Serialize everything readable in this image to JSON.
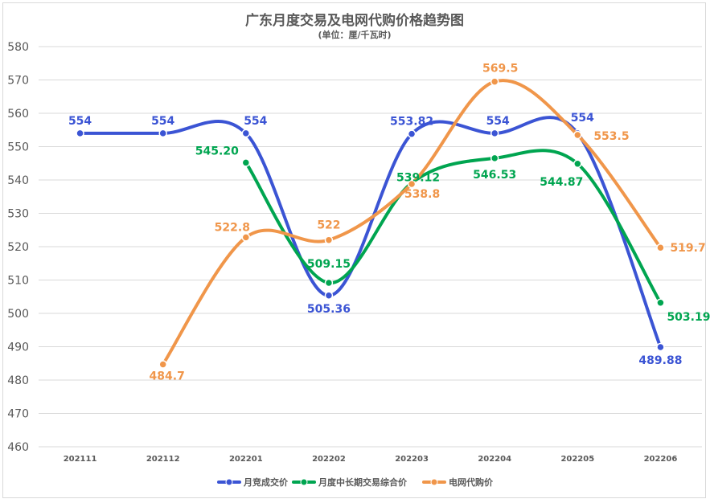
{
  "chart_data": {
    "type": "line",
    "title": "广东月度交易及电网代购价格趋势图",
    "subtitle": "(单位：厘/千瓦时)",
    "categories": [
      "202111",
      "202112",
      "202201",
      "202202",
      "202203",
      "202204",
      "202205",
      "202206"
    ],
    "ylim": [
      460,
      580
    ],
    "yticks": [
      460,
      470,
      480,
      490,
      500,
      510,
      520,
      530,
      540,
      550,
      560,
      570,
      580
    ],
    "grid": true,
    "smooth": true,
    "legend_position": "bottom",
    "series": [
      {
        "name": "月竞成交价",
        "color": "#3b54d4",
        "values": [
          554,
          554,
          554,
          505.36,
          553.82,
          554,
          554,
          489.88
        ],
        "labels": [
          "554",
          "554",
          "554",
          "505.36",
          "553.82",
          "554",
          "554",
          "489.88"
        ]
      },
      {
        "name": "月度中长期交易综合价",
        "color": "#00a550",
        "values": [
          null,
          null,
          545.2,
          509.15,
          539.12,
          546.53,
          544.87,
          503.19
        ],
        "labels": [
          "",
          "",
          "545.20",
          "509.15",
          "539.12",
          "546.53",
          "544.87",
          "503.19"
        ]
      },
      {
        "name": "电网代购价",
        "color": "#f0964a",
        "values": [
          null,
          484.7,
          522.8,
          522,
          538.8,
          569.5,
          553.5,
          519.7
        ],
        "labels": [
          "",
          "484.7",
          "522.8",
          "522",
          "538.8",
          "569.5",
          "553.5",
          "519.7"
        ]
      }
    ]
  }
}
